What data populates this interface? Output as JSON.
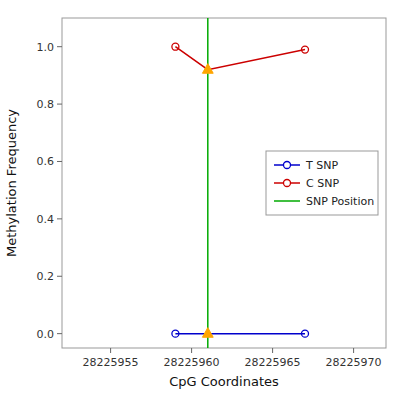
{
  "chart_data": {
    "type": "line",
    "xlabel": "CpG Coordinates",
    "ylabel": "Methylation Frequency",
    "xlim": [
      28225952,
      28225972
    ],
    "ylim": [
      -0.05,
      1.1
    ],
    "xticks": [
      28225955,
      28225960,
      28225965,
      28225970
    ],
    "yticks": [
      {
        "value": 0.0,
        "label": "0.0"
      },
      0.2,
      0.4,
      0.6,
      0.8,
      {
        "value": 1.0,
        "label": "1.0"
      }
    ],
    "series": [
      {
        "name": "T SNP",
        "color": "#0000cc",
        "marker": "circle",
        "x": [
          28225959,
          28225961,
          28225967
        ],
        "values": [
          0.0,
          0.0,
          0.0
        ]
      },
      {
        "name": "C SNP",
        "color": "#cc0000",
        "marker": "circle",
        "x": [
          28225959,
          28225961,
          28225967
        ],
        "values": [
          1.0,
          0.92,
          0.99
        ]
      }
    ],
    "vline": {
      "name": "SNP Position",
      "x": 28225961,
      "color": "#00aa00"
    },
    "highlight": {
      "marker": "triangle",
      "color": "#FFA500"
    },
    "legend": "right",
    "grid": false
  }
}
